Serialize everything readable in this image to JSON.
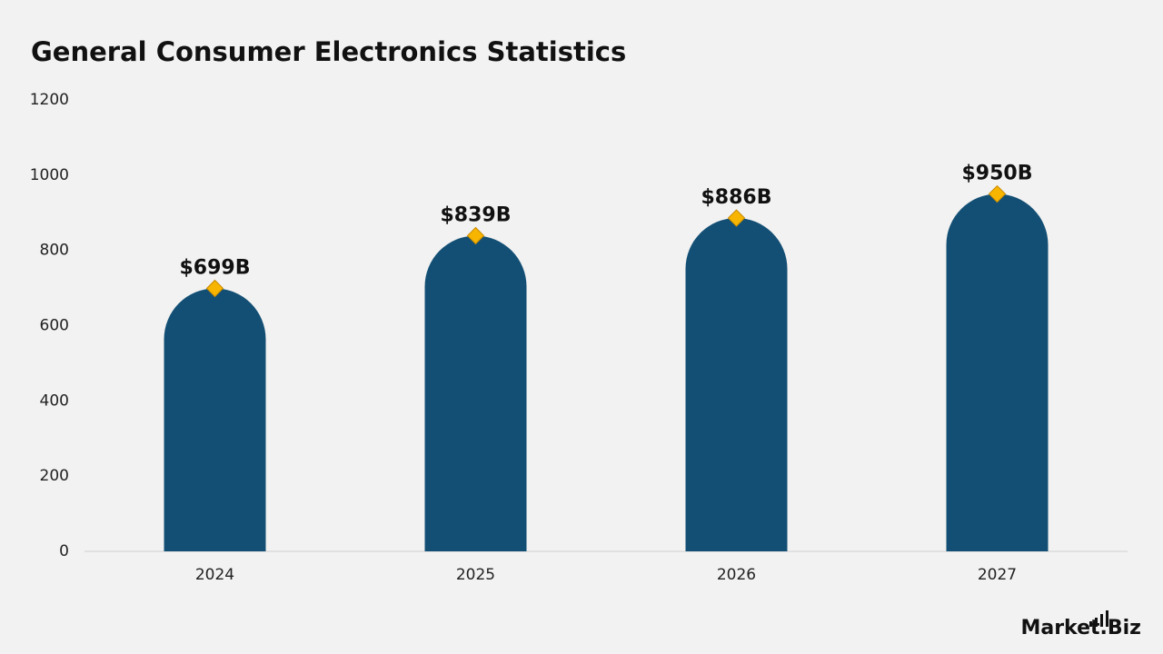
{
  "chart_data": {
    "type": "bar",
    "title": "General Consumer Electronics Statistics",
    "categories": [
      "2024",
      "2025",
      "2026",
      "2027"
    ],
    "values": [
      699,
      839,
      886,
      950
    ],
    "value_labels": [
      "$699B",
      "$839B",
      "$886B",
      "$950B"
    ],
    "color": "#134f74",
    "marker_color": "#f7b500",
    "ylim": [
      0,
      1200
    ],
    "yticks": [
      0,
      200,
      400,
      600,
      800,
      1000,
      1200
    ],
    "grid": false
  },
  "watermark": "Market.Biz"
}
